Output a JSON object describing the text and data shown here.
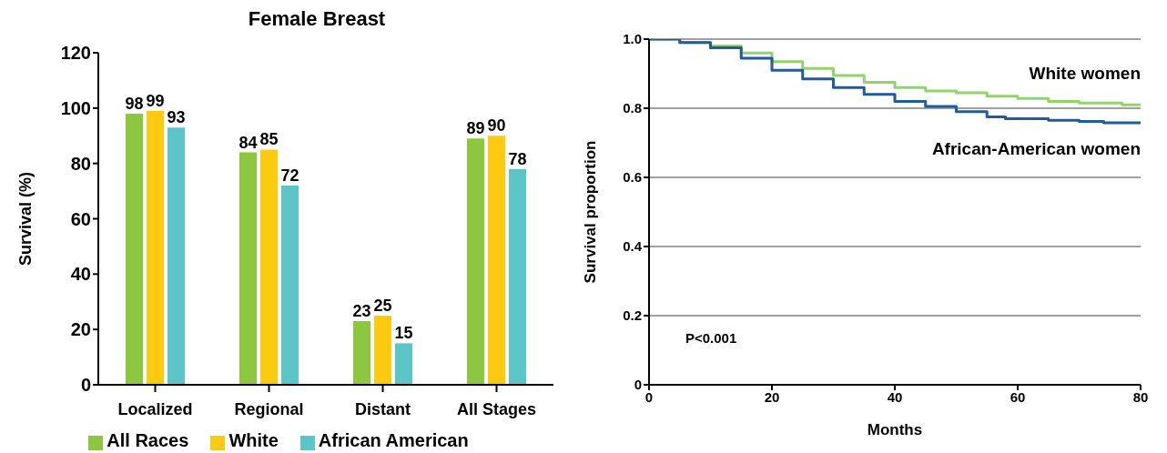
{
  "chart_data": [
    {
      "type": "bar",
      "title": "Female Breast",
      "ylabel": "Survival (%)",
      "categories": [
        "Localized",
        "Regional",
        "Distant",
        "All Stages"
      ],
      "series": [
        {
          "name": "All Races",
          "color": "#8dc63f",
          "values": [
            98,
            84,
            23,
            89
          ]
        },
        {
          "name": "White",
          "color": "#fccb0f",
          "values": [
            99,
            85,
            25,
            90
          ]
        },
        {
          "name": "African American",
          "color": "#5bc5c8",
          "values": [
            93,
            72,
            15,
            78
          ]
        }
      ],
      "ylim": [
        0,
        120
      ],
      "yticks": [
        0,
        20,
        40,
        60,
        80,
        100,
        120
      ],
      "data_labels": true,
      "legend": "bottom"
    },
    {
      "type": "step",
      "xlabel": "Months",
      "ylabel": "Survival proportion",
      "annotations": [
        "P<0.001"
      ],
      "series": [
        {
          "name": "White women",
          "color": "#92d36e",
          "x": [
            0,
            5,
            10,
            15,
            20,
            25,
            30,
            35,
            40,
            45,
            50,
            55,
            60,
            65,
            70,
            77,
            80
          ],
          "values": [
            1.0,
            0.99,
            0.98,
            0.96,
            0.935,
            0.915,
            0.895,
            0.875,
            0.86,
            0.85,
            0.845,
            0.835,
            0.828,
            0.82,
            0.815,
            0.81,
            0.81
          ]
        },
        {
          "name": "African-American women",
          "color": "#1f5c99",
          "x": [
            0,
            5,
            10,
            15,
            20,
            25,
            30,
            35,
            40,
            45,
            50,
            55,
            58,
            65,
            70,
            74,
            80
          ],
          "values": [
            1.0,
            0.99,
            0.975,
            0.945,
            0.91,
            0.885,
            0.86,
            0.84,
            0.82,
            0.805,
            0.79,
            0.775,
            0.77,
            0.765,
            0.762,
            0.758,
            0.76
          ]
        }
      ],
      "xlim": [
        0,
        80
      ],
      "xticks": [
        0,
        20,
        40,
        60,
        80
      ],
      "ylim": [
        0,
        1
      ],
      "yticks": [
        0,
        0.2,
        0.4,
        0.6,
        0.8,
        {
          "value": 1,
          "label": "1.0"
        }
      ],
      "grid": "y"
    }
  ]
}
